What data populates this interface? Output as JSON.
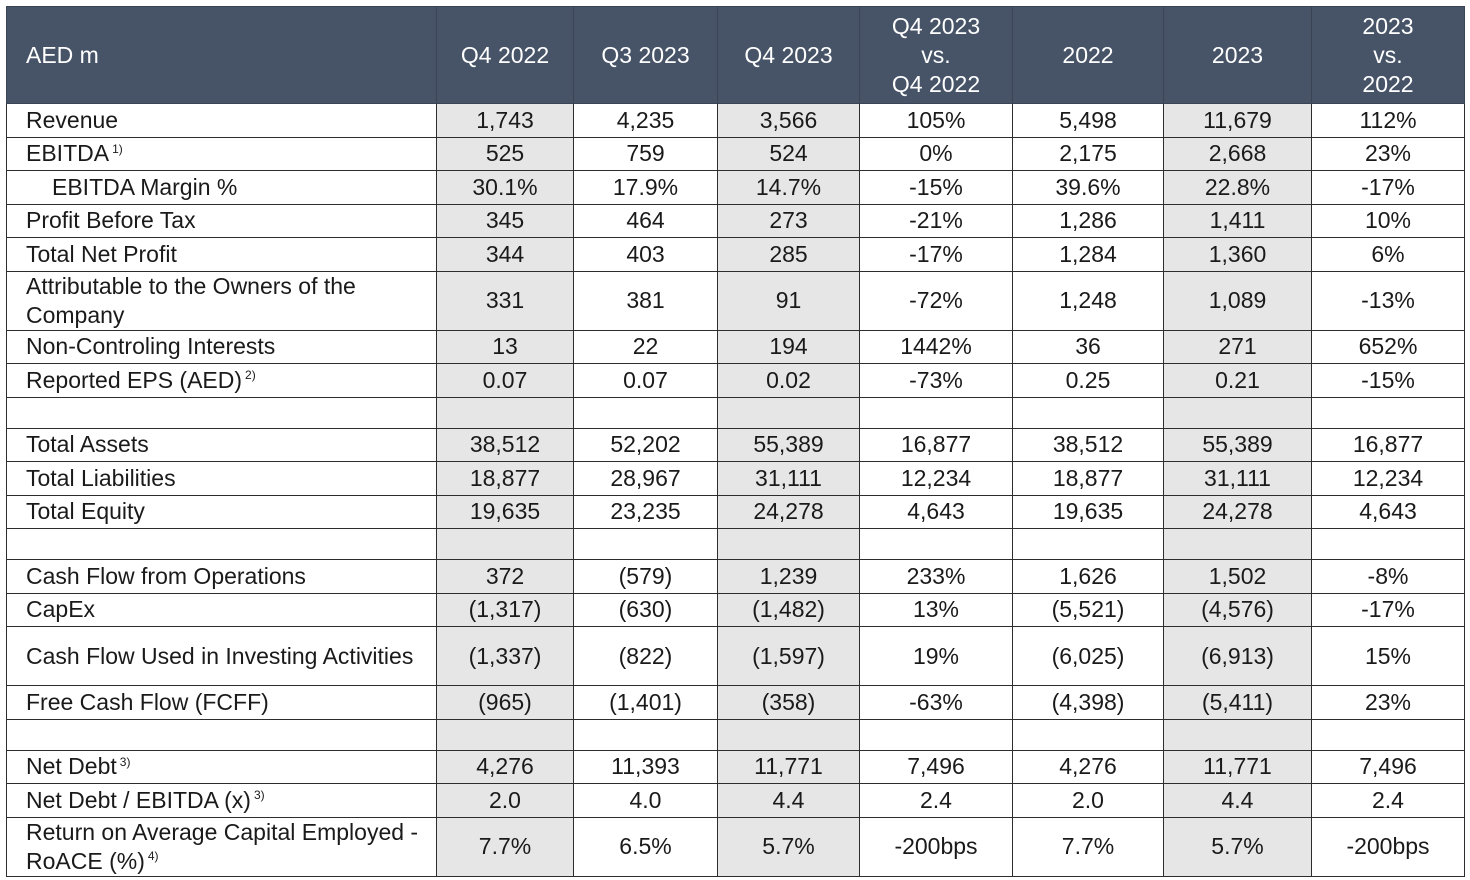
{
  "table": {
    "columns": [
      {
        "label": [
          "AED m"
        ]
      },
      {
        "label": [
          "Q4 2022"
        ]
      },
      {
        "label": [
          "Q3 2023"
        ]
      },
      {
        "label": [
          "Q4 2023"
        ]
      },
      {
        "label": [
          "Q4 2023",
          "vs.",
          "Q4 2022"
        ]
      },
      {
        "label": [
          "2022"
        ]
      },
      {
        "label": [
          "2023"
        ]
      },
      {
        "label": [
          "2023",
          "vs.",
          "2022"
        ]
      }
    ],
    "shaded_columns": [
      1,
      3,
      6
    ],
    "rows": [
      {
        "label": "Revenue",
        "values": [
          "1,743",
          "4,235",
          "3,566",
          "105%",
          "5,498",
          "11,679",
          "112%"
        ]
      },
      {
        "label": "EBITDA",
        "note": "1)",
        "values": [
          "525",
          "759",
          "524",
          "0%",
          "2,175",
          "2,668",
          "23%"
        ]
      },
      {
        "label": "EBITDA Margin %",
        "indent": true,
        "values": [
          "30.1%",
          "17.9%",
          "14.7%",
          "-15%",
          "39.6%",
          "22.8%",
          "-17%"
        ]
      },
      {
        "label": "Profit Before Tax",
        "values": [
          "345",
          "464",
          "273",
          "-21%",
          "1,286",
          "1,411",
          "10%"
        ]
      },
      {
        "label": "Total Net Profit",
        "values": [
          "344",
          "403",
          "285",
          "-17%",
          "1,284",
          "1,360",
          "6%"
        ]
      },
      {
        "label": "Attributable to the Owners of the Company",
        "values": [
          "331",
          "381",
          "91",
          "-72%",
          "1,248",
          "1,089",
          "-13%"
        ]
      },
      {
        "label": "Non-Controling Interests",
        "values": [
          "13",
          "22",
          "194",
          "1442%",
          "36",
          "271",
          "652%"
        ]
      },
      {
        "label": "Reported EPS (AED)",
        "note": "2)",
        "values": [
          "0.07",
          "0.07",
          "0.02",
          "-73%",
          "0.25",
          "0.21",
          "-15%"
        ]
      },
      {
        "spacer": true
      },
      {
        "label": "Total Assets",
        "values": [
          "38,512",
          "52,202",
          "55,389",
          "16,877",
          "38,512",
          "55,389",
          "16,877"
        ]
      },
      {
        "label": "Total Liabilities",
        "values": [
          "18,877",
          "28,967",
          "31,111",
          "12,234",
          "18,877",
          "31,111",
          "12,234"
        ]
      },
      {
        "label": "Total Equity",
        "values": [
          "19,635",
          "23,235",
          "24,278",
          "4,643",
          "19,635",
          "24,278",
          "4,643"
        ]
      },
      {
        "spacer": true
      },
      {
        "label": "Cash Flow from Operations",
        "values": [
          "372",
          "(579)",
          "1,239",
          "233%",
          "1,626",
          "1,502",
          "-8%"
        ]
      },
      {
        "label": "CapEx",
        "values": [
          "(1,317)",
          "(630)",
          "(1,482)",
          "13%",
          "(5,521)",
          "(4,576)",
          "-17%"
        ]
      },
      {
        "label": "Cash Flow Used in Investing Activities",
        "values": [
          "(1,337)",
          "(822)",
          "(1,597)",
          "19%",
          "(6,025)",
          "(6,913)",
          "15%"
        ]
      },
      {
        "label": "Free Cash Flow (FCFF)",
        "values": [
          "(965)",
          "(1,401)",
          "(358)",
          "-63%",
          "(4,398)",
          "(5,411)",
          "23%"
        ]
      },
      {
        "spacer": true
      },
      {
        "label": "Net Debt",
        "note": "3)",
        "values": [
          "4,276",
          "11,393",
          "11,771",
          "7,496",
          "4,276",
          "11,771",
          "7,496"
        ]
      },
      {
        "label": "Net Debt / EBITDA (x)",
        "note": "3)",
        "values": [
          "2.0",
          "4.0",
          "4.4",
          "2.4",
          "2.0",
          "4.4",
          "2.4"
        ]
      },
      {
        "label": "Return on Average Capital Employed - RoACE (%)",
        "note": "4)",
        "values": [
          "7.7%",
          "6.5%",
          "5.7%",
          "-200bps",
          "7.7%",
          "5.7%",
          "-200bps"
        ]
      }
    ]
  },
  "colors": {
    "header_bg": "#475468",
    "header_text": "#ffffff",
    "shade": "#e6e6e6",
    "border": "#2d2d2d"
  }
}
